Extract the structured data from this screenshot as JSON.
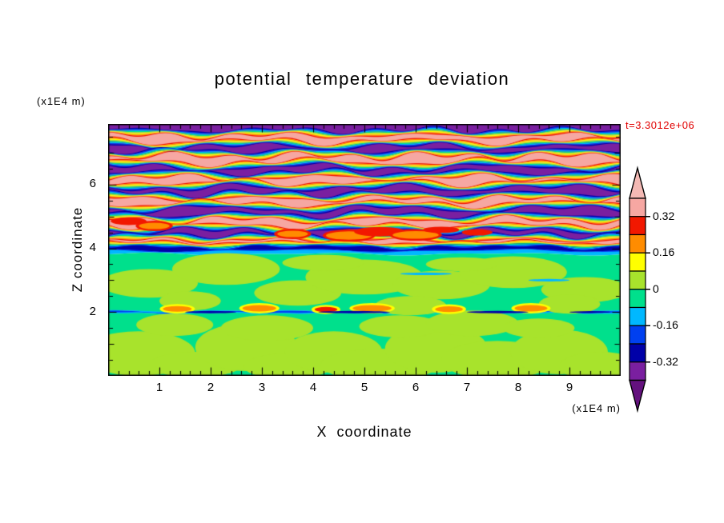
{
  "title": "potential temperature deviation",
  "annotations": {
    "time_label": "t=3.3012e+06",
    "top_left_unit": "(x1E4 m)",
    "bottom_right_unit": "(x1E4 m)"
  },
  "axes": {
    "x": {
      "label": "X coordinate",
      "tick_labels": [
        "1",
        "2",
        "3",
        "4",
        "5",
        "6",
        "7",
        "8",
        "9"
      ],
      "range": [
        0,
        10
      ]
    },
    "z": {
      "label": "Z coordinate",
      "tick_labels": [
        "6",
        "4",
        "2"
      ],
      "range": [
        0,
        7.9
      ]
    }
  },
  "colorbar": {
    "tick_labels": [
      "0.32",
      "0.16",
      "0",
      "-0.16",
      "-0.32"
    ],
    "levels": [
      -0.4,
      -0.32,
      -0.24,
      -0.16,
      -0.08,
      0,
      0.08,
      0.16,
      0.24,
      0.32,
      0.4
    ],
    "colors_low_to_high": [
      "#7a1fa0",
      "#0000a8",
      "#0040f0",
      "#00b8ff",
      "#00e08c",
      "#a8e32c",
      "#ffff00",
      "#ff8c00",
      "#f21800",
      "#f6a7a2"
    ],
    "under_color": "#64117e",
    "over_color": "#f4b9b4"
  },
  "chart_data": {
    "type": "heatmap",
    "title": "potential temperature deviation",
    "xlabel": "X coordinate (x1E4 m)",
    "ylabel": "Z coordinate (x1E4 m)",
    "time_label": "t=3.3012e+06",
    "x_range": [
      0,
      10
    ],
    "z_range": [
      0,
      7.9
    ],
    "value_levels": [
      -0.4,
      -0.32,
      -0.24,
      -0.16,
      -0.08,
      0,
      0.08,
      0.16,
      0.24,
      0.32,
      0.4
    ],
    "legend_position": "right",
    "description": "Filled-contour field of potential temperature deviation: alternating strong positive (pink, ~+0.36) and strong negative (purple, ~-0.36) horizontal wave layers above z=4 with thin rainbow contour filaments between them, a strong negative blue band near z=4, a weakly negative spring-green region below z=3.8 containing weakly positive yellow-green patches, and a thin negative streak with small positive (orange) spots near z=2.",
    "bands": [
      {
        "v": -0.36,
        "zb": 7.62,
        "a1": 0.06,
        "l1": 2.8,
        "p1": 0.5,
        "a2": 0.04,
        "l2": 1.3,
        "p2": 2.1
      },
      {
        "v": 0.36,
        "zb": 7.28,
        "a1": 0.08,
        "l1": 3.2,
        "p1": 2.4,
        "a2": 0.05,
        "l2": 1.6,
        "p2": 0.7
      },
      {
        "v": -0.36,
        "zb": 6.98,
        "a1": 0.07,
        "l1": 2.5,
        "p1": 4.4,
        "a2": 0.05,
        "l2": 1.2,
        "p2": 1.9
      },
      {
        "v": 0.36,
        "zb": 6.62,
        "a1": 0.09,
        "l1": 3.6,
        "p1": 1.1,
        "a2": 0.05,
        "l2": 1.5,
        "p2": 3.3
      },
      {
        "v": -0.36,
        "zb": 6.3,
        "a1": 0.08,
        "l1": 2.9,
        "p1": 5.2,
        "a2": 0.04,
        "l2": 1.4,
        "p2": 0.2
      },
      {
        "v": 0.36,
        "zb": 5.98,
        "a1": 0.08,
        "l1": 3.1,
        "p1": 2.9,
        "a2": 0.05,
        "l2": 1.7,
        "p2": 4.6
      },
      {
        "v": -0.36,
        "zb": 5.64,
        "a1": 0.07,
        "l1": 2.6,
        "p1": 0.9,
        "a2": 0.05,
        "l2": 1.3,
        "p2": 2.8
      },
      {
        "v": 0.36,
        "zb": 5.32,
        "a1": 0.09,
        "l1": 3.4,
        "p1": 4.1,
        "a2": 0.04,
        "l2": 1.6,
        "p2": 1.5
      },
      {
        "v": -0.36,
        "zb": 4.98,
        "a1": 0.08,
        "l1": 2.7,
        "p1": 1.8,
        "a2": 0.05,
        "l2": 1.4,
        "p2": 5.0
      },
      {
        "v": 0.36,
        "zb": 4.64,
        "a1": 0.07,
        "l1": 3.0,
        "p1": 3.7,
        "a2": 0.05,
        "l2": 1.5,
        "p2": 2.3
      },
      {
        "v": -0.36,
        "zb": 4.34,
        "a1": 0.06,
        "l1": 2.4,
        "p1": 5.8,
        "a2": 0.04,
        "l2": 1.2,
        "p2": 0.9
      },
      {
        "v": 0.36,
        "zb": 4.12,
        "a1": 0.04,
        "l1": 3.8,
        "p1": 1.4,
        "a2": 0.03,
        "l2": 1.8,
        "p2": 3.9
      },
      {
        "v": -0.28,
        "zb": 3.93,
        "a1": 0.03,
        "l1": 4.2,
        "p1": 2.6,
        "a2": 0.02,
        "l2": 2.0,
        "p2": 1.1
      },
      {
        "v": -0.12,
        "zb": 3.82,
        "a1": 0.03,
        "l1": 3.5,
        "p1": 0.4,
        "a2": 0.02,
        "l2": 1.9,
        "p2": 4.8
      },
      {
        "v": -0.04,
        "zb": 2.03,
        "a1": 0.02,
        "l1": 3.3,
        "p1": 2.2,
        "a2": 0.015,
        "l2": 1.7,
        "p2": 0.6
      },
      {
        "v": -0.2,
        "zb": 1.97,
        "a1": 0.015,
        "l1": 2.1,
        "p1": 1.0,
        "a2": 0.01,
        "l2": 0.9,
        "p2": 3.1
      },
      {
        "v": -0.04,
        "zb": 0
      }
    ],
    "blobs": [
      {
        "x": 0.6,
        "z": 0.7,
        "rx": 1.1,
        "rz": 0.7,
        "v": 0.04
      },
      {
        "x": 1.7,
        "z": 0.35,
        "rx": 0.9,
        "rz": 0.4,
        "v": 0.04
      },
      {
        "x": 2.7,
        "z": 0.9,
        "rx": 1.0,
        "rz": 0.75,
        "v": 0.04
      },
      {
        "x": 3.5,
        "z": 0.3,
        "rx": 0.85,
        "rz": 0.4,
        "v": 0.04
      },
      {
        "x": 4.4,
        "z": 0.75,
        "rx": 0.95,
        "rz": 0.65,
        "v": 0.04
      },
      {
        "x": 5.3,
        "z": 0.35,
        "rx": 1.15,
        "rz": 0.5,
        "v": 0.04
      },
      {
        "x": 6.4,
        "z": 0.85,
        "rx": 1.0,
        "rz": 0.75,
        "v": 0.04
      },
      {
        "x": 7.6,
        "z": 0.5,
        "rx": 1.1,
        "rz": 0.6,
        "v": 0.04
      },
      {
        "x": 8.8,
        "z": 0.75,
        "rx": 0.95,
        "rz": 0.7,
        "v": 0.04
      },
      {
        "x": 9.6,
        "z": 0.3,
        "rx": 0.8,
        "rz": 0.45,
        "v": 0.04
      },
      {
        "x": 1.3,
        "z": 1.6,
        "rx": 0.75,
        "rz": 0.35,
        "v": 0.04
      },
      {
        "x": 3.1,
        "z": 1.5,
        "rx": 0.9,
        "rz": 0.4,
        "v": 0.04
      },
      {
        "x": 5.7,
        "z": 1.55,
        "rx": 0.8,
        "rz": 0.35,
        "v": 0.04
      },
      {
        "x": 7.1,
        "z": 1.65,
        "rx": 0.9,
        "rz": 0.4,
        "v": 0.04
      },
      {
        "x": 8.4,
        "z": 1.5,
        "rx": 0.7,
        "rz": 0.3,
        "v": 0.04
      },
      {
        "x": 0.8,
        "z": 2.9,
        "rx": 0.95,
        "rz": 0.45,
        "v": 0.04
      },
      {
        "x": 2.3,
        "z": 3.35,
        "rx": 1.05,
        "rz": 0.5,
        "v": 0.04
      },
      {
        "x": 3.7,
        "z": 2.6,
        "rx": 0.85,
        "rz": 0.4,
        "v": 0.04
      },
      {
        "x": 5.0,
        "z": 3.1,
        "rx": 1.15,
        "rz": 0.55,
        "v": 0.04
      },
      {
        "x": 6.5,
        "z": 2.85,
        "rx": 0.95,
        "rz": 0.45,
        "v": 0.04
      },
      {
        "x": 7.9,
        "z": 3.25,
        "rx": 1.05,
        "rz": 0.5,
        "v": 0.04
      },
      {
        "x": 9.3,
        "z": 2.7,
        "rx": 0.85,
        "rz": 0.4,
        "v": 0.04
      },
      {
        "x": 1.6,
        "z": 2.35,
        "rx": 0.6,
        "rz": 0.3,
        "v": 0.04
      },
      {
        "x": 5.9,
        "z": 2.2,
        "rx": 0.7,
        "rz": 0.3,
        "v": 0.04
      },
      {
        "x": 9.0,
        "z": 2.25,
        "rx": 0.6,
        "rz": 0.3,
        "v": 0.04
      },
      {
        "x": 4.2,
        "z": 3.55,
        "rx": 0.8,
        "rz": 0.25,
        "v": 0.04
      },
      {
        "x": 6.9,
        "z": 3.5,
        "rx": 0.7,
        "rz": 0.22,
        "v": 0.04
      },
      {
        "x": 1.35,
        "z": 2.1,
        "rx": 0.28,
        "rz": 0.09,
        "v": 0.2,
        "ring": 0.12
      },
      {
        "x": 2.95,
        "z": 2.12,
        "rx": 0.33,
        "rz": 0.1,
        "v": 0.2,
        "ring": 0.12
      },
      {
        "x": 4.25,
        "z": 2.08,
        "rx": 0.22,
        "rz": 0.08,
        "v": 0.28,
        "ring": 0.12
      },
      {
        "x": 5.15,
        "z": 2.12,
        "rx": 0.38,
        "rz": 0.1,
        "v": 0.2,
        "ring": 0.12
      },
      {
        "x": 6.65,
        "z": 2.09,
        "rx": 0.27,
        "rz": 0.09,
        "v": 0.2,
        "ring": 0.12
      },
      {
        "x": 8.25,
        "z": 2.12,
        "rx": 0.32,
        "rz": 0.1,
        "v": 0.2,
        "ring": 0.12
      },
      {
        "x": 4.7,
        "z": 4.4,
        "rx": 0.45,
        "rz": 0.13,
        "v": 0.2,
        "ring": 0.28
      },
      {
        "x": 5.3,
        "z": 4.52,
        "rx": 0.5,
        "rz": 0.15,
        "v": 0.28
      },
      {
        "x": 6.0,
        "z": 4.42,
        "rx": 0.45,
        "rz": 0.12,
        "v": 0.2,
        "ring": 0.28
      },
      {
        "x": 6.5,
        "z": 4.58,
        "rx": 0.35,
        "rz": 0.1,
        "v": 0.28
      },
      {
        "x": 3.6,
        "z": 4.45,
        "rx": 0.3,
        "rz": 0.1,
        "v": 0.2,
        "ring": 0.28
      },
      {
        "x": 7.2,
        "z": 4.5,
        "rx": 0.3,
        "rz": 0.1,
        "v": 0.28
      },
      {
        "x": 0.4,
        "z": 4.85,
        "rx": 0.35,
        "rz": 0.12,
        "v": 0.28
      },
      {
        "x": 0.9,
        "z": 4.7,
        "rx": 0.3,
        "rz": 0.1,
        "v": 0.2,
        "ring": 0.28
      },
      {
        "x": 2.0,
        "z": 2.0,
        "rx": 0.5,
        "rz": 0.035,
        "v": -0.28
      },
      {
        "x": 4.8,
        "z": 2.0,
        "rx": 0.7,
        "rz": 0.035,
        "v": -0.28
      },
      {
        "x": 7.6,
        "z": 2.0,
        "rx": 0.6,
        "rz": 0.035,
        "v": -0.28
      },
      {
        "x": 9.4,
        "z": 2.0,
        "rx": 0.4,
        "rz": 0.03,
        "v": -0.28
      },
      {
        "x": 6.2,
        "z": 3.2,
        "rx": 0.5,
        "rz": 0.04,
        "v": -0.12
      },
      {
        "x": 8.6,
        "z": 3.0,
        "rx": 0.4,
        "rz": 0.04,
        "v": -0.12
      }
    ]
  }
}
